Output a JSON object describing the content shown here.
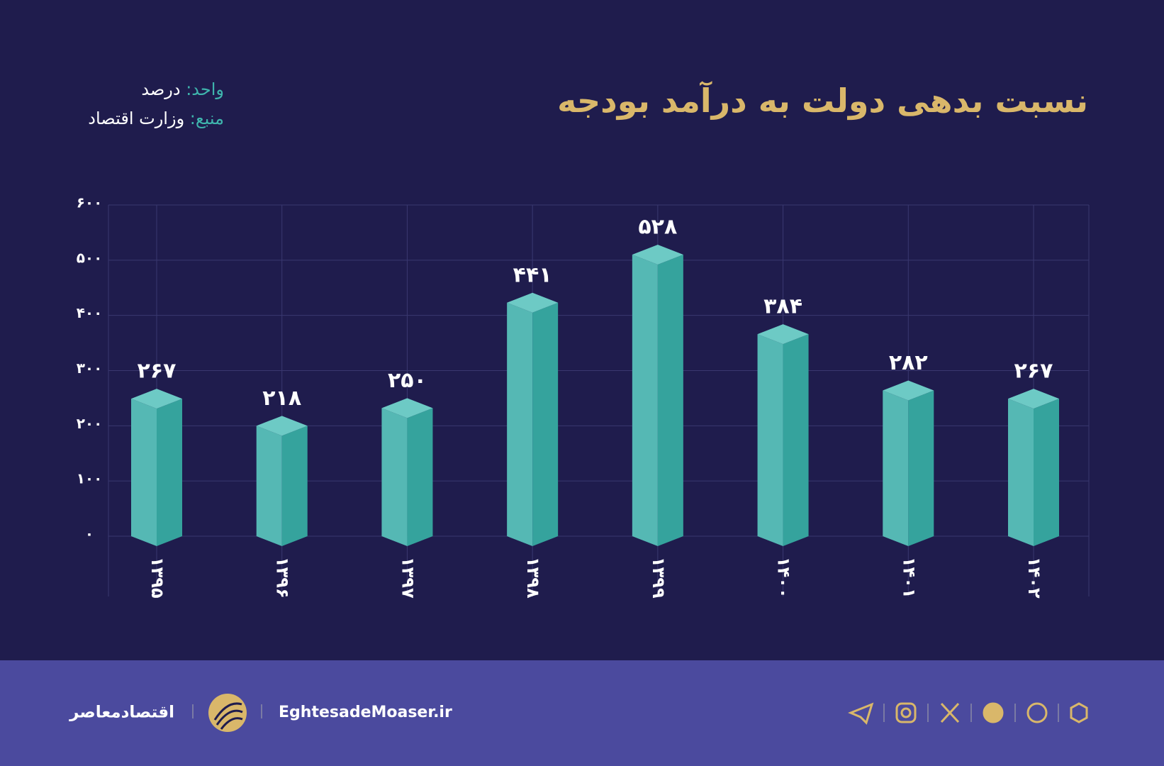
{
  "header": {
    "title": "نسبت بدهی دولت به درآمد بودجه",
    "unit_label": "واحد:",
    "unit": "درصد",
    "source_label": "منبع:",
    "source": "وزارت اقتصاد"
  },
  "chart_data": {
    "type": "bar3d",
    "categories": [
      "۱۳۹۵",
      "۱۳۹۶",
      "۱۳۹۷",
      "۱۳۹۸",
      "۱۳۹۹",
      "۱۴۰۰",
      "۱۴۰۱",
      "۱۴۰۲"
    ],
    "values": [
      267,
      218,
      250,
      441,
      528,
      384,
      282,
      267
    ],
    "value_labels": [
      "۲۶۷",
      "۲۱۸",
      "۲۵۰",
      "۴۴۱",
      "۵۲۸",
      "۳۸۴",
      "۲۸۲",
      "۲۶۷"
    ],
    "color": "#55b8b4",
    "ylim": [
      0,
      600
    ],
    "yticks": [
      {
        "value": 0,
        "label": "۰"
      },
      {
        "value": 100,
        "label": "۱۰۰"
      },
      {
        "value": 200,
        "label": "۲۰۰"
      },
      {
        "value": 300,
        "label": "۳۰۰"
      },
      {
        "value": 400,
        "label": "۴۰۰"
      },
      {
        "value": 500,
        "label": "۵۰۰"
      },
      {
        "value": 600,
        "label": "۶۰۰"
      }
    ],
    "grid": true
  },
  "footer": {
    "brand": "اقتصادمعاصر",
    "site": "EghtesadeMoaser.ir"
  }
}
